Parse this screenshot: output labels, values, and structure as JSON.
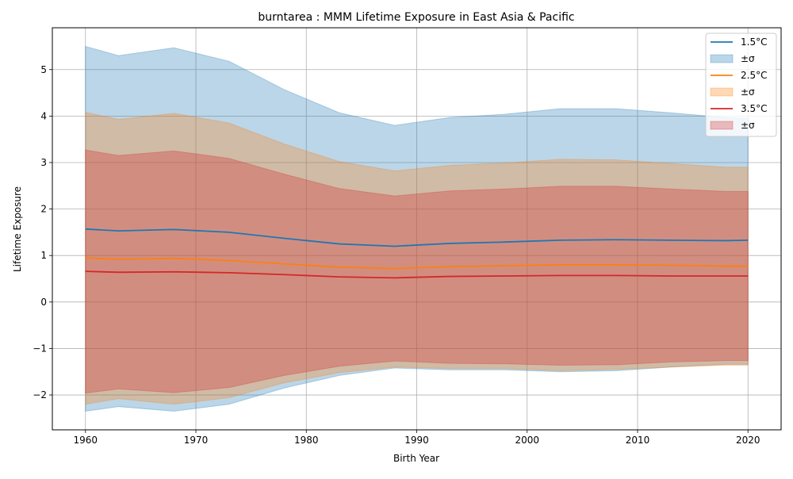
{
  "chart_data": {
    "type": "area",
    "title": "burntarea : MMM Lifetime Exposure in East Asia & Pacific",
    "xlabel": "Birth Year",
    "ylabel": "Lifetime Exposure",
    "xlim": [
      1957,
      2023
    ],
    "ylim": [
      -2.75,
      5.9
    ],
    "xticks": [
      1960,
      1970,
      1980,
      1990,
      2000,
      2010,
      2020
    ],
    "yticks": [
      -2,
      -1,
      0,
      1,
      2,
      3,
      4,
      5
    ],
    "ytick_labels": [
      "−2",
      "−1",
      "0",
      "1",
      "2",
      "3",
      "4",
      "5"
    ],
    "grid": true,
    "legend_position": "top-right",
    "x": [
      1960,
      1963,
      1968,
      1973,
      1978,
      1983,
      1988,
      1993,
      1998,
      2003,
      2008,
      2013,
      2018,
      2020
    ],
    "series": [
      {
        "name": "1.5°C",
        "band_label": "±σ",
        "color": "#1f77b4",
        "mean": [
          1.57,
          1.53,
          1.56,
          1.5,
          1.37,
          1.25,
          1.2,
          1.26,
          1.29,
          1.33,
          1.34,
          1.33,
          1.32,
          1.33
        ],
        "upper": [
          5.5,
          5.3,
          5.47,
          5.18,
          4.57,
          4.07,
          3.8,
          3.97,
          4.04,
          4.16,
          4.16,
          4.07,
          3.97,
          3.95
        ],
        "lower": [
          -2.35,
          -2.25,
          -2.35,
          -2.2,
          -1.85,
          -1.58,
          -1.42,
          -1.46,
          -1.46,
          -1.5,
          -1.48,
          -1.4,
          -1.34,
          -1.34
        ]
      },
      {
        "name": "2.5°C",
        "band_label": "±σ",
        "color": "#ff7f0e",
        "mean": [
          0.95,
          0.92,
          0.94,
          0.89,
          0.82,
          0.75,
          0.72,
          0.76,
          0.78,
          0.8,
          0.8,
          0.79,
          0.77,
          0.77
        ],
        "upper": [
          4.08,
          3.93,
          4.06,
          3.85,
          3.4,
          3.02,
          2.82,
          2.94,
          2.99,
          3.07,
          3.06,
          2.98,
          2.9,
          2.9
        ],
        "lower": [
          -2.2,
          -2.08,
          -2.2,
          -2.06,
          -1.74,
          -1.52,
          -1.4,
          -1.43,
          -1.43,
          -1.48,
          -1.45,
          -1.4,
          -1.36,
          -1.36
        ]
      },
      {
        "name": "3.5°C",
        "band_label": "±σ",
        "color": "#d62728",
        "mean": [
          0.66,
          0.64,
          0.65,
          0.63,
          0.59,
          0.54,
          0.52,
          0.55,
          0.56,
          0.57,
          0.57,
          0.56,
          0.56,
          0.56
        ],
        "upper": [
          3.27,
          3.15,
          3.25,
          3.09,
          2.75,
          2.44,
          2.28,
          2.39,
          2.43,
          2.49,
          2.49,
          2.43,
          2.38,
          2.38
        ],
        "lower": [
          -1.96,
          -1.87,
          -1.95,
          -1.84,
          -1.58,
          -1.38,
          -1.27,
          -1.32,
          -1.33,
          -1.36,
          -1.35,
          -1.29,
          -1.26,
          -1.26
        ]
      }
    ]
  }
}
